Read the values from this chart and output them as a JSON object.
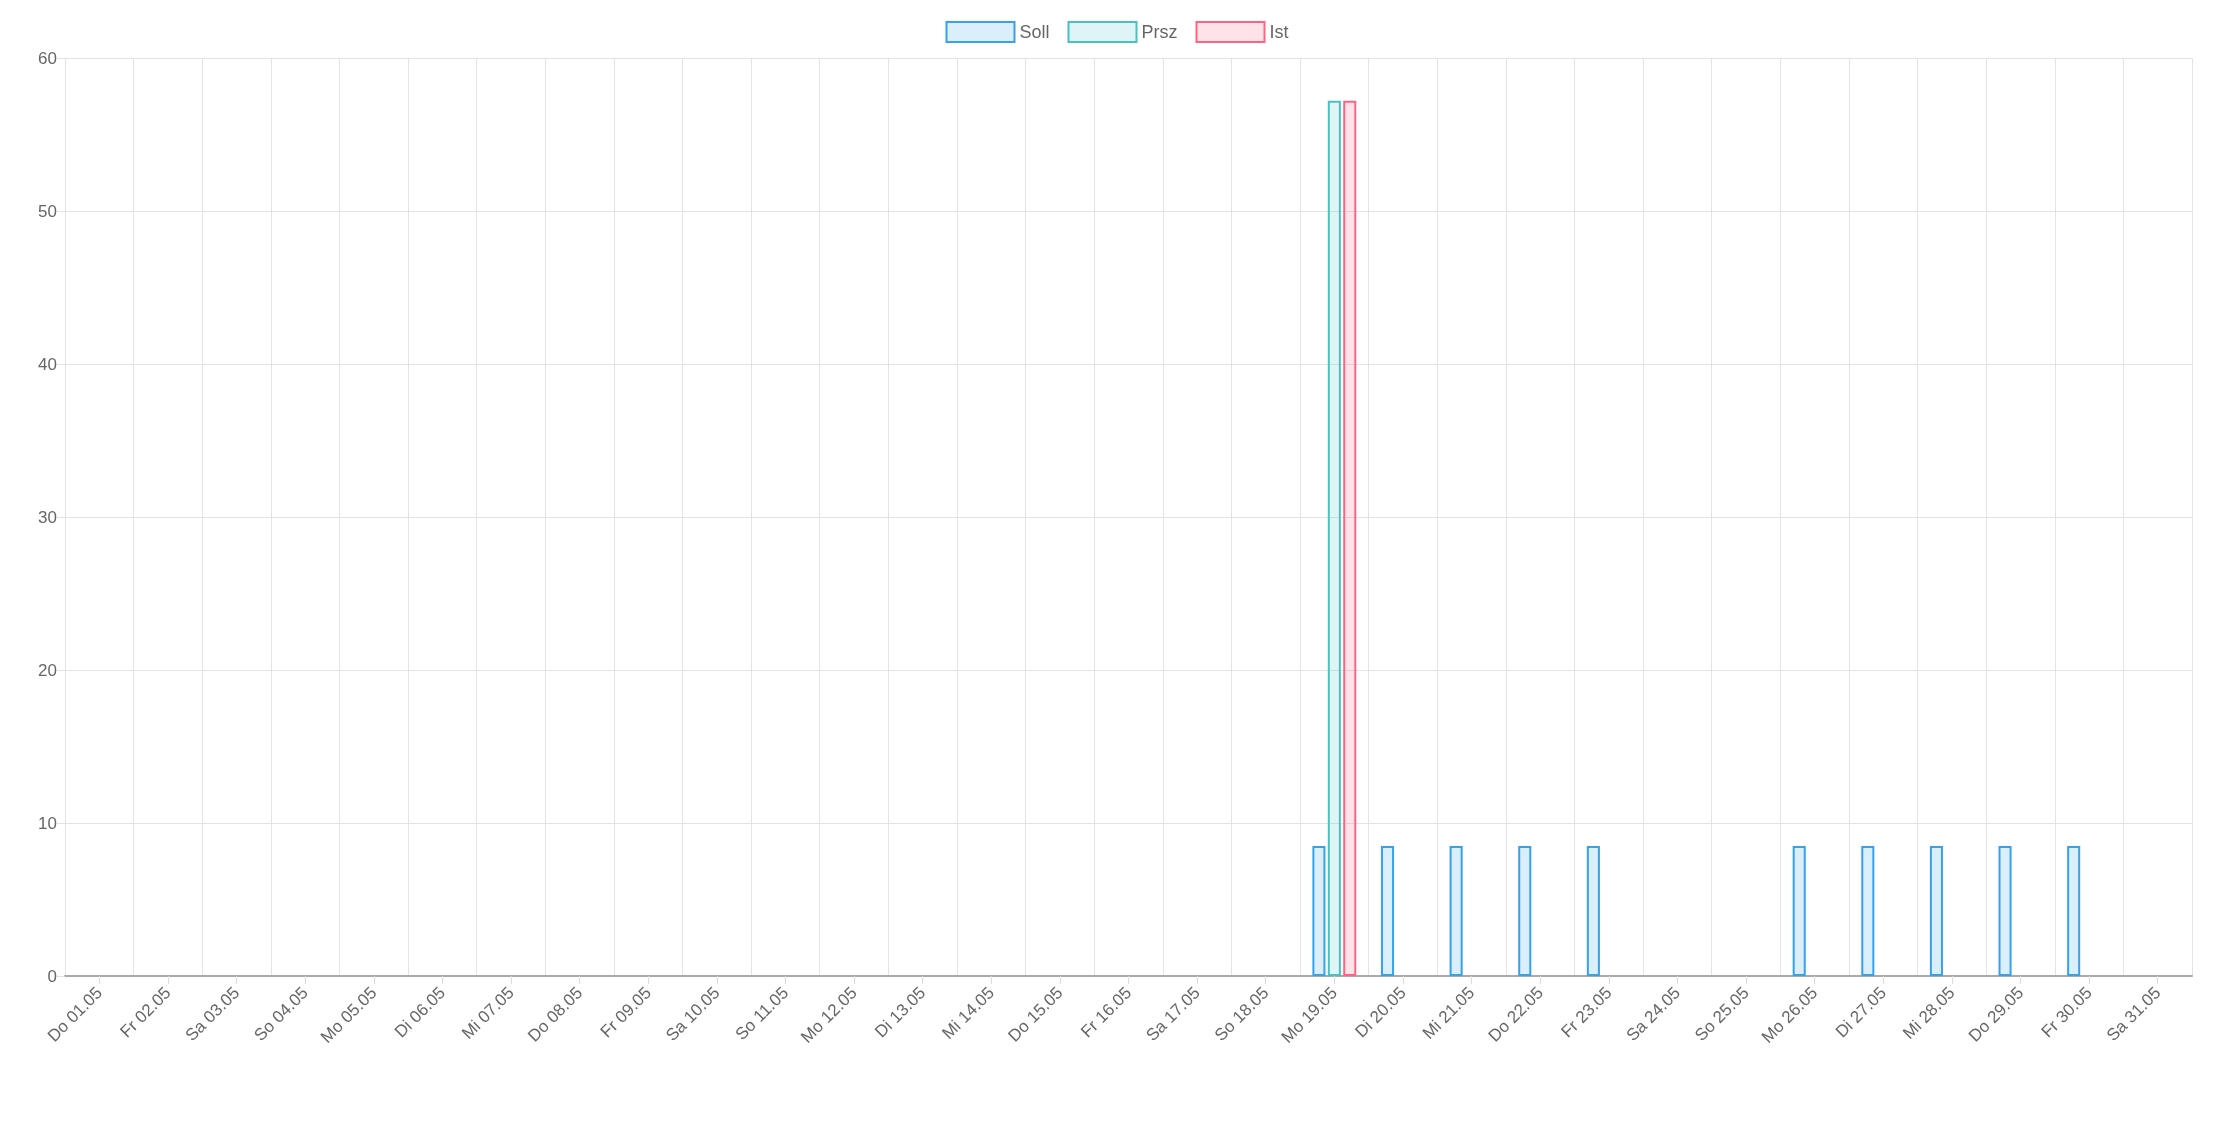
{
  "chart_data": {
    "type": "bar",
    "categories": [
      "Do 01.05",
      "Fr 02.05",
      "Sa 03.05",
      "So 04.05",
      "Mo 05.05",
      "Di 06.05",
      "Mi 07.05",
      "Do 08.05",
      "Fr 09.05",
      "Sa 10.05",
      "So 11.05",
      "Mo 12.05",
      "Di 13.05",
      "Mi 14.05",
      "Do 15.05",
      "Fr 16.05",
      "Sa 17.05",
      "So 18.05",
      "Mo 19.05",
      "Di 20.05",
      "Mi 21.05",
      "Do 22.05",
      "Fr 23.05",
      "Sa 24.05",
      "So 25.05",
      "Mo 26.05",
      "Di 27.05",
      "Mi 28.05",
      "Do 29.05",
      "Fr 30.05",
      "Sa 31.05"
    ],
    "series": [
      {
        "name": "Soll",
        "color": "#36a2eb",
        "values": [
          null,
          null,
          null,
          null,
          null,
          null,
          null,
          null,
          null,
          null,
          null,
          null,
          null,
          null,
          null,
          null,
          null,
          null,
          8.5,
          8.5,
          8.5,
          8.5,
          8.5,
          null,
          null,
          8.5,
          8.5,
          8.5,
          8.5,
          8.5,
          null
        ]
      },
      {
        "name": "Prsz",
        "color": "#4bc0c0",
        "values": [
          null,
          null,
          null,
          null,
          null,
          null,
          null,
          null,
          null,
          null,
          null,
          null,
          null,
          null,
          null,
          null,
          null,
          null,
          57.2,
          null,
          null,
          null,
          null,
          null,
          null,
          null,
          null,
          null,
          null,
          null,
          null
        ]
      },
      {
        "name": "Ist",
        "color": "#ff6384",
        "values": [
          null,
          null,
          null,
          null,
          null,
          null,
          null,
          null,
          null,
          null,
          null,
          null,
          null,
          null,
          null,
          null,
          null,
          null,
          57.2,
          null,
          null,
          null,
          null,
          null,
          null,
          null,
          null,
          null,
          null,
          null,
          null
        ]
      }
    ],
    "ylim": [
      0,
      60
    ],
    "yticks": [
      0,
      10,
      20,
      30,
      40,
      50,
      60
    ],
    "grid": true,
    "legend": "top"
  }
}
